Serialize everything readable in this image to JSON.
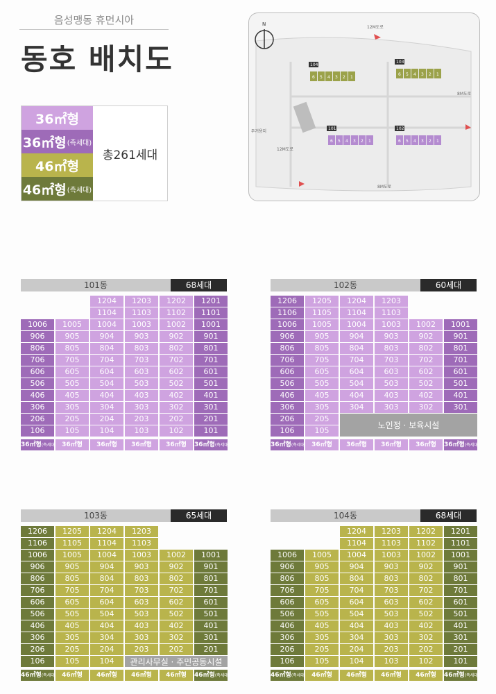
{
  "header": {
    "subtitle": "음성맹동 휴먼시아",
    "title": "동호 배치도"
  },
  "legend": {
    "rows": [
      {
        "label": "36㎡형",
        "suffix": "",
        "color": "#cfa3e0"
      },
      {
        "label": "36㎡형",
        "suffix": "(측세대)",
        "color": "#9e6bb8"
      },
      {
        "label": "46㎡형",
        "suffix": "",
        "color": "#b9b44c"
      },
      {
        "label": "46㎡형",
        "suffix": "(측세대)",
        "color": "#6e7a3a"
      }
    ],
    "total": "총261세대"
  },
  "map": {
    "compass": "N",
    "roads": [
      "12M도로",
      "8M도로",
      "12M도로",
      "8M도로"
    ],
    "neighbor": "주거용지",
    "buildings": [
      {
        "name": "104",
        "units": [
          "6",
          "5",
          "4",
          "3",
          "2",
          "1"
        ]
      },
      {
        "name": "103",
        "units": [
          "6",
          "5",
          "4",
          "3",
          "2",
          "1"
        ]
      },
      {
        "name": "101",
        "units": [
          "6",
          "5",
          "4",
          "3",
          "2",
          "1"
        ]
      },
      {
        "name": "102",
        "units": [
          "6",
          "5",
          "4",
          "3",
          "2",
          "1"
        ]
      }
    ]
  },
  "blocks": [
    {
      "name": "101동",
      "count": "68세대",
      "c1": "#cfa3e0",
      "c2": "#9e6bb8",
      "top": 12,
      "columns": [
        {
          "type": "36㎡형",
          "side": true,
          "floors": [
            1,
            10
          ]
        },
        {
          "type": "36㎡형",
          "side": false,
          "floors": [
            1,
            10
          ]
        },
        {
          "type": "36㎡형",
          "side": false,
          "floors": [
            1,
            12
          ]
        },
        {
          "type": "36㎡형",
          "side": false,
          "floors": [
            1,
            12
          ]
        },
        {
          "type": "36㎡형",
          "side": false,
          "floors": [
            1,
            12
          ]
        },
        {
          "type": "36㎡형",
          "side": true,
          "floors": [
            1,
            12
          ]
        }
      ],
      "facility": null
    },
    {
      "name": "102동",
      "count": "60세대",
      "c1": "#cfa3e0",
      "c2": "#9e6bb8",
      "top": 12,
      "columns": [
        {
          "type": "36㎡형",
          "side": true,
          "floors": [
            1,
            12
          ]
        },
        {
          "type": "36㎡형",
          "side": false,
          "floors": [
            1,
            12
          ]
        },
        {
          "type": "36㎡형",
          "side": false,
          "floors": [
            3,
            12
          ]
        },
        {
          "type": "36㎡형",
          "side": false,
          "floors": [
            3,
            12
          ]
        },
        {
          "type": "36㎡형",
          "side": false,
          "floors": [
            3,
            10
          ]
        },
        {
          "type": "36㎡형",
          "side": true,
          "floors": [
            3,
            10
          ]
        }
      ],
      "facility": {
        "label": "노인정 · 보육시설",
        "fromCol": 2,
        "toCol": 5,
        "floors": [
          1,
          2
        ]
      }
    },
    {
      "name": "103동",
      "count": "65세대",
      "c1": "#b9b44c",
      "c2": "#6e7a3a",
      "top": 12,
      "columns": [
        {
          "type": "46㎡형",
          "side": true,
          "floors": [
            1,
            12
          ]
        },
        {
          "type": "46㎡형",
          "side": false,
          "floors": [
            1,
            12
          ]
        },
        {
          "type": "46㎡형",
          "side": false,
          "floors": [
            1,
            12
          ]
        },
        {
          "type": "46㎡형",
          "side": false,
          "floors": [
            2,
            12
          ]
        },
        {
          "type": "46㎡형",
          "side": false,
          "floors": [
            2,
            10
          ]
        },
        {
          "type": "46㎡형",
          "side": true,
          "floors": [
            2,
            10
          ]
        }
      ],
      "facility": {
        "label": "관리사무실 · 주민공동시설",
        "fromCol": 3,
        "toCol": 5,
        "floors": [
          1,
          1
        ]
      }
    },
    {
      "name": "104동",
      "count": "68세대",
      "c1": "#b9b44c",
      "c2": "#6e7a3a",
      "top": 12,
      "columns": [
        {
          "type": "46㎡형",
          "side": true,
          "floors": [
            1,
            10
          ]
        },
        {
          "type": "46㎡형",
          "side": false,
          "floors": [
            1,
            10
          ]
        },
        {
          "type": "46㎡형",
          "side": false,
          "floors": [
            1,
            12
          ]
        },
        {
          "type": "46㎡형",
          "side": false,
          "floors": [
            1,
            12
          ]
        },
        {
          "type": "46㎡형",
          "side": false,
          "floors": [
            1,
            12
          ]
        },
        {
          "type": "46㎡형",
          "side": true,
          "floors": [
            1,
            12
          ]
        }
      ],
      "facility": null
    }
  ],
  "side_suffix": "(측세대)"
}
